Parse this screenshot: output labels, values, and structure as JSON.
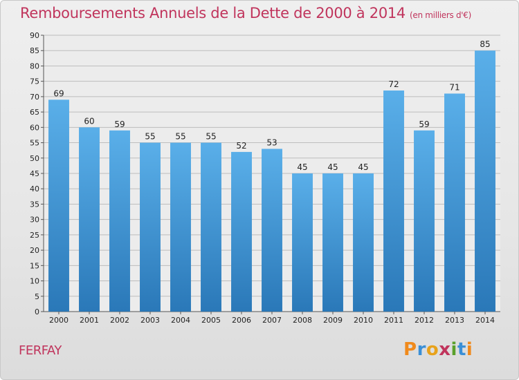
{
  "title": "Remboursements Annuels de la Dette de 2000 à 2014",
  "unit_note": "(en milliers d'€)",
  "commune": "FERFAY",
  "logo": {
    "text": "Proxiti",
    "colors": [
      "#f08a1c",
      "#3a8fd6",
      "#e8a21b",
      "#c0345c",
      "#5aa02c",
      "#3a8fd6",
      "#f08a1c"
    ]
  },
  "colors": {
    "bar_light": "#5aafe9",
    "bar_dark": "#2a78b8",
    "title": "#c0345c"
  },
  "chart_data": {
    "type": "bar",
    "title": "Remboursements Annuels de la Dette de 2000 à 2014",
    "categories": [
      "2000",
      "2001",
      "2002",
      "2003",
      "2004",
      "2005",
      "2006",
      "2007",
      "2008",
      "2009",
      "2010",
      "2011",
      "2012",
      "2013",
      "2014"
    ],
    "values": [
      69,
      60,
      59,
      55,
      55,
      55,
      52,
      53,
      45,
      45,
      45,
      72,
      59,
      71,
      85
    ],
    "ylim": [
      0,
      90
    ],
    "yticks": [
      0,
      5,
      10,
      15,
      20,
      25,
      30,
      35,
      40,
      45,
      50,
      55,
      60,
      65,
      70,
      75,
      80,
      85,
      90
    ],
    "grid": true,
    "legend": "none"
  }
}
